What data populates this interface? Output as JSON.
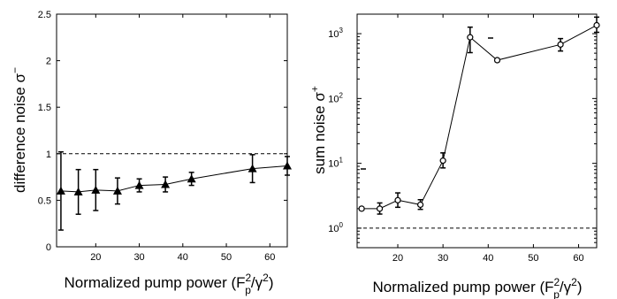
{
  "chart_data": [
    {
      "type": "line",
      "xlabel": "Normalized pump power (F",
      "xlabel_sub": "p",
      "xlabel_sup": "2",
      "xlabel_mid": "/γ",
      "xlabel_sup2": "2",
      "xlabel_end": ")",
      "ylabel": "difference noise σ",
      "ylabel_sup": "−",
      "xlim": [
        11,
        64
      ],
      "ylim": [
        0,
        2.5
      ],
      "x_ticks": [
        "20",
        "30",
        "40",
        "50",
        "60"
      ],
      "y_ticks": [
        "0",
        "0.5",
        "1",
        "1.5",
        "2",
        "2.5"
      ],
      "reference_line": 1,
      "marker": "triangle",
      "series": [
        {
          "x": [
            12,
            16,
            20,
            25,
            30,
            36,
            42,
            56,
            64
          ],
          "y": [
            0.6,
            0.59,
            0.61,
            0.6,
            0.66,
            0.67,
            0.73,
            0.84,
            0.87
          ],
          "err_low": [
            0.42,
            0.24,
            0.22,
            0.14,
            0.07,
            0.08,
            0.07,
            0.15,
            0.1
          ],
          "err_high": [
            0.42,
            0.24,
            0.22,
            0.14,
            0.07,
            0.08,
            0.07,
            0.15,
            0.1
          ]
        }
      ]
    },
    {
      "type": "line",
      "xlabel": "Normalized pump power (F",
      "xlabel_sub": "p",
      "xlabel_sup": "2",
      "xlabel_mid": "/γ",
      "xlabel_sup2": "2",
      "xlabel_end": ")",
      "ylabel": "sum noise σ",
      "ylabel_sup": "+",
      "yscale": "log",
      "xlim": [
        11,
        64
      ],
      "ylim": [
        0.5,
        2000
      ],
      "x_ticks": [
        "20",
        "30",
        "40",
        "50",
        "60"
      ],
      "y_ticks": [
        "10",
        "10",
        "10",
        "10"
      ],
      "y_tick_exps": [
        "0",
        "1",
        "2",
        "3"
      ],
      "reference_line": 1,
      "marker": "circle",
      "series": [
        {
          "x": [
            12,
            16,
            20,
            25,
            30,
            36,
            42,
            56,
            64
          ],
          "y": [
            2.0,
            2.0,
            2.7,
            2.3,
            11,
            880,
            390,
            680,
            1350
          ],
          "err_low": [
            0.1,
            0.35,
            0.6,
            0.35,
            2.5,
            370,
            20,
            140,
            300
          ],
          "err_high": [
            0.1,
            0.45,
            0.8,
            0.45,
            3.5,
            380,
            20,
            160,
            450
          ]
        }
      ]
    }
  ]
}
